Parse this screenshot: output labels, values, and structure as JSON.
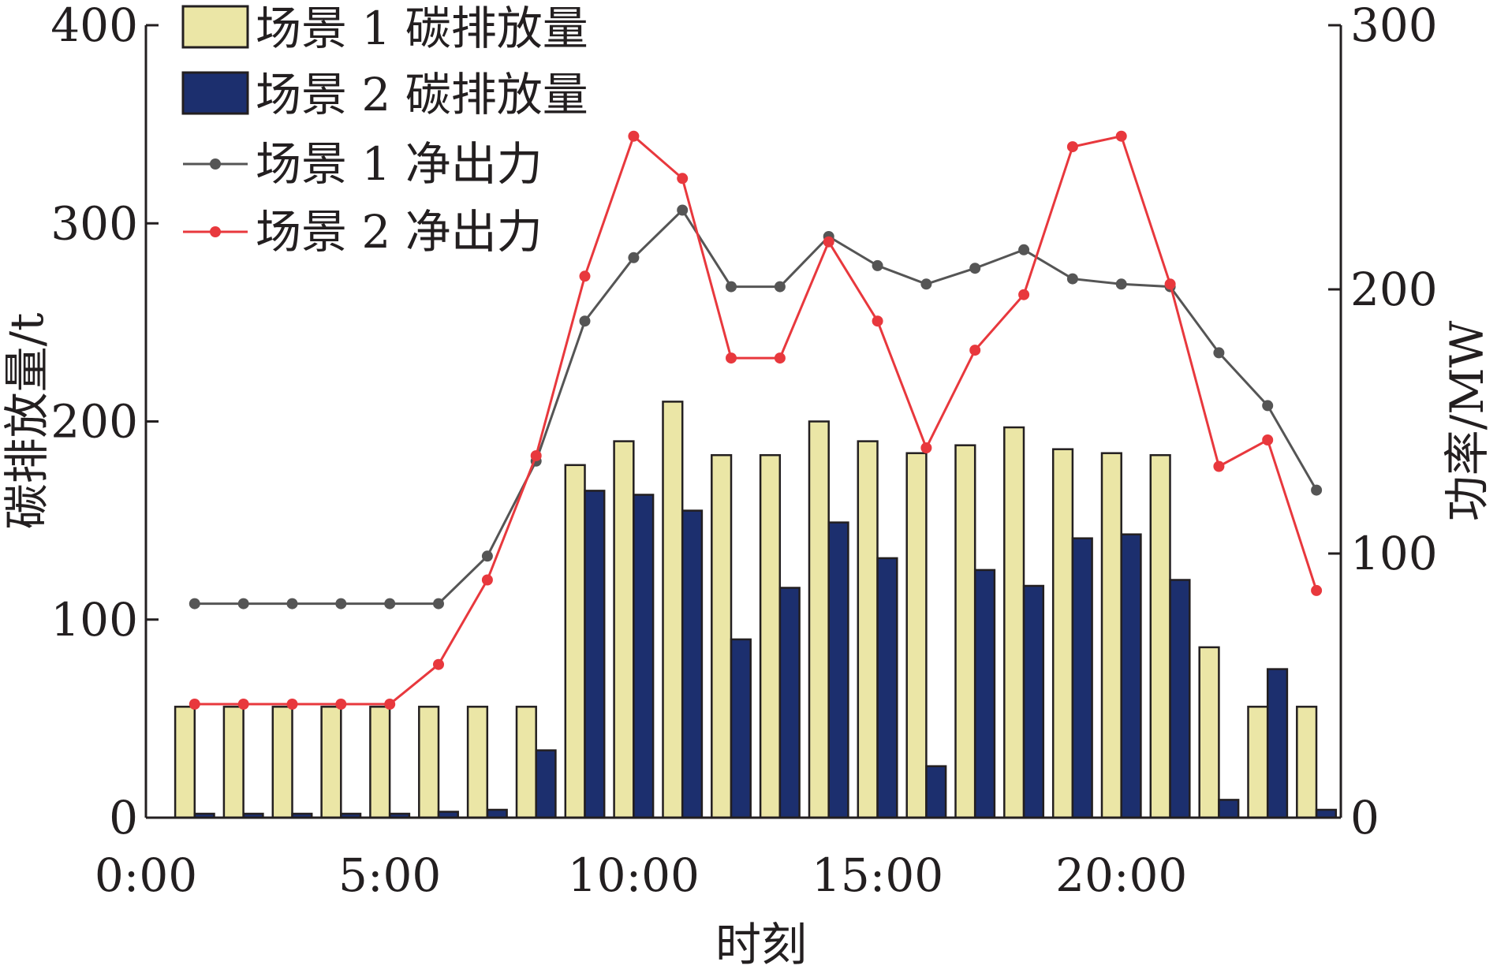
{
  "chart_data": {
    "type": "bar",
    "x_ticks": [
      "0:00",
      "5:00",
      "10:00",
      "15:00",
      "20:00"
    ],
    "x_tick_values": [
      0,
      5,
      10,
      15,
      20
    ],
    "xlabel": "时刻",
    "ylabel_left": "碳排放量/t",
    "ylabel_right": "功率/MW",
    "ylim_left": [
      0,
      400
    ],
    "ylim_right": [
      0,
      300
    ],
    "yticks_left": [
      "0",
      "100",
      "200",
      "300",
      "400"
    ],
    "yticks_right": [
      "0",
      "100",
      "200",
      "300"
    ],
    "grid": false,
    "legend_position": "top-left",
    "x": [
      1,
      2,
      3,
      4,
      5,
      6,
      7,
      8,
      9,
      10,
      11,
      12,
      13,
      14,
      15,
      16,
      17,
      18,
      19,
      20,
      21,
      22,
      23,
      24
    ],
    "bar_series": [
      {
        "name": "场景 1 碳排放量",
        "axis": "left",
        "color": "#ebe6a6",
        "values": [
          56,
          56,
          56,
          56,
          56,
          56,
          56,
          56,
          178,
          190,
          210,
          183,
          183,
          200,
          190,
          184,
          188,
          197,
          186,
          184,
          183,
          86,
          56,
          56
        ]
      },
      {
        "name": "场景 2 碳排放量",
        "axis": "left",
        "color": "#1c2f6e",
        "values": [
          2,
          2,
          2,
          2,
          2,
          3,
          4,
          34,
          165,
          163,
          155,
          90,
          116,
          149,
          131,
          26,
          125,
          117,
          141,
          143,
          120,
          9,
          75,
          4
        ]
      }
    ],
    "line_series": [
      {
        "name": "场景 1 净出力",
        "axis": "right",
        "color": "#555555",
        "values": [
          81,
          81,
          81,
          81,
          81,
          81,
          99,
          135,
          188,
          212,
          230,
          201,
          201,
          220,
          209,
          202,
          208,
          215,
          204,
          202,
          201,
          176,
          156,
          124
        ]
      },
      {
        "name": "场景 2 净出力",
        "axis": "right",
        "color": "#e8383d",
        "values": [
          43,
          43,
          43,
          43,
          43,
          58,
          90,
          137,
          205,
          258,
          242,
          174,
          174,
          218,
          188,
          140,
          177,
          198,
          254,
          258,
          202,
          133,
          143,
          86
        ]
      }
    ]
  }
}
